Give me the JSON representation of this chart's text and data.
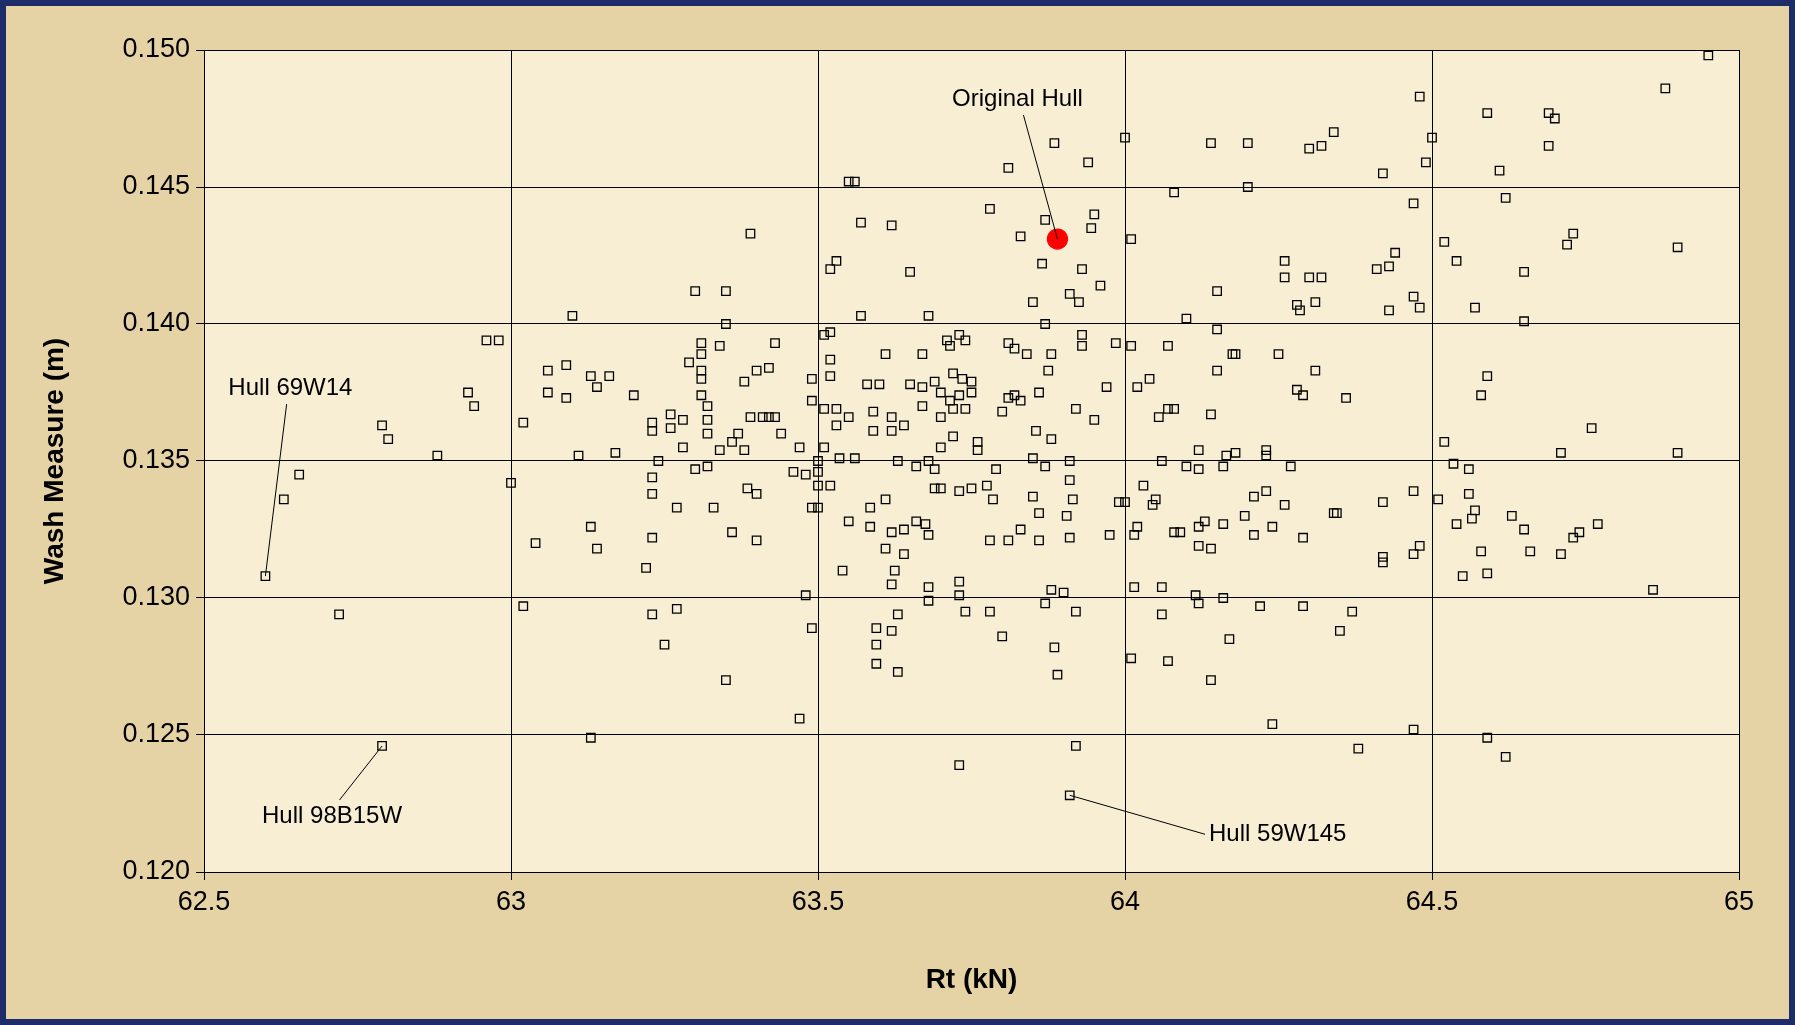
{
  "chart_data": {
    "type": "scatter",
    "xlabel": "Rt (kN)",
    "ylabel": "Wash Measure (m)",
    "xlim": [
      62.5,
      65
    ],
    "xticks": [
      62.5,
      63,
      63.5,
      64,
      64.5,
      65
    ],
    "ylim": [
      0.12,
      0.15
    ],
    "yticks": [
      {
        "value": 0.12,
        "label": "0.120"
      },
      0.125,
      {
        "value": 0.13,
        "label": "0.130"
      },
      0.135,
      {
        "value": 0.14,
        "label": "0.140"
      },
      0.145,
      {
        "value": 0.15,
        "label": "0.150"
      }
    ],
    "grid": true,
    "legend": false,
    "series": [
      {
        "color": "#000000",
        "marker": "square",
        "x": [
          62.6,
          62.63,
          62.655,
          62.72,
          62.79,
          62.8,
          62.79,
          62.88,
          62.93,
          62.94,
          62.96,
          62.98,
          63,
          63.02,
          63.02,
          63.04,
          63.06,
          63.06,
          63.09,
          63.09,
          63.1,
          63.11,
          63.13,
          63.14,
          63.13,
          63.14,
          63.13,
          63.16,
          63.17,
          63.2,
          63.22,
          63.23,
          63.23,
          63.23,
          63.23,
          63.23,
          63.23,
          63.24,
          63.25,
          63.26,
          63.26,
          63.27,
          63.27,
          63.28,
          63.28,
          63.29,
          63.3,
          63.3,
          63.31,
          63.31,
          63.31,
          63.31,
          63.31,
          63.32,
          63.32,
          63.32,
          63.32,
          63.33,
          63.34,
          63.34,
          63.35,
          63.35,
          63.35,
          63.36,
          63.36,
          63.37,
          63.38,
          63.38,
          63.385,
          63.39,
          63.39,
          63.4,
          63.4,
          63.4,
          63.41,
          63.42,
          63.43,
          63.42,
          63.43,
          63.44,
          63.46,
          63.47,
          63.47,
          63.48,
          63.49,
          63.48,
          63.49,
          63.49,
          63.49,
          63.5,
          63.5,
          63.5,
          63.5,
          63.51,
          63.51,
          63.51,
          63.52,
          63.52,
          63.52,
          63.52,
          63.53,
          63.52,
          63.53,
          63.53,
          63.535,
          63.54,
          63.55,
          63.56,
          63.55,
          63.55,
          63.56,
          63.57,
          63.57,
          63.58,
          63.585,
          63.585,
          63.59,
          63.59,
          63.595,
          63.595,
          63.595,
          63.6,
          63.61,
          63.61,
          63.61,
          63.62,
          63.62,
          63.62,
          63.62,
          63.62,
          63.625,
          63.62,
          63.63,
          63.63,
          63.63,
          63.64,
          63.64,
          63.64,
          63.65,
          63.65,
          63.66,
          63.66,
          63.67,
          63.67,
          63.67,
          63.675,
          63.68,
          63.68,
          63.68,
          63.68,
          63.68,
          63.69,
          63.69,
          63.69,
          63.7,
          63.7,
          63.7,
          63.7,
          63.71,
          63.715,
          63.73,
          63.715,
          63.72,
          63.72,
          63.72,
          63.73,
          63.73,
          63.73,
          63.73,
          63.73,
          63.735,
          63.74,
          63.74,
          63.74,
          63.75,
          63.75,
          63.75,
          63.76,
          63.76,
          63.775,
          63.78,
          63.78,
          63.78,
          63.785,
          63.79,
          63.8,
          63.8,
          63.81,
          63.81,
          63.81,
          63.82,
          63.82,
          63.81,
          63.83,
          63.83,
          63.83,
          63.84,
          63.85,
          63.85,
          63.85,
          63.855,
          63.86,
          63.86,
          63.86,
          63.87,
          63.865,
          63.87,
          63.87,
          63.87,
          63.875,
          63.88,
          63.88,
          63.88,
          63.885,
          63.885,
          63.89,
          63.9,
          63.905,
          63.91,
          63.91,
          63.91,
          63.91,
          63.91,
          63.915,
          63.92,
          63.92,
          63.92,
          63.925,
          63.93,
          63.93,
          63.93,
          63.94,
          63.945,
          63.95,
          63.95,
          63.96,
          63.97,
          63.975,
          63.985,
          63.99,
          64,
          64,
          64.01,
          64.01,
          64.01,
          64.015,
          64.015,
          64.02,
          64.02,
          64.03,
          64.04,
          64.045,
          64.05,
          64.055,
          64.06,
          64.06,
          64.06,
          64.07,
          64.07,
          64.07,
          64.08,
          64.08,
          64.08,
          64.09,
          64.1,
          64.1,
          64.115,
          64.12,
          64.12,
          64.12,
          64.12,
          64.12,
          64.13,
          64.14,
          64.14,
          64.14,
          64.14,
          64.15,
          64.15,
          64.15,
          64.16,
          64.16,
          64.16,
          64.165,
          64.17,
          64.175,
          64.18,
          64.18,
          64.195,
          64.2,
          64.2,
          64.21,
          64.21,
          64.22,
          64.23,
          64.23,
          64.23,
          64.24,
          64.24,
          64.25,
          64.26,
          64.26,
          64.26,
          64.27,
          64.28,
          64.28,
          64.285,
          64.29,
          64.29,
          64.29,
          64.3,
          64.3,
          64.31,
          64.31,
          64.32,
          64.32,
          64.34,
          64.34,
          64.345,
          64.35,
          64.36,
          64.37,
          64.38,
          64.41,
          64.42,
          64.42,
          64.42,
          64.42,
          64.43,
          64.43,
          64.44,
          64.47,
          64.47,
          64.47,
          64.47,
          64.47,
          64.48,
          64.48,
          64.48,
          64.49,
          64.5,
          64.51,
          64.52,
          64.52,
          64.535,
          64.54,
          64.54,
          64.55,
          64.56,
          64.56,
          64.565,
          64.57,
          64.57,
          64.58,
          64.58,
          64.59,
          64.59,
          64.59,
          64.59,
          64.61,
          64.62,
          64.62,
          64.63,
          64.65,
          64.65,
          64.65,
          64.66,
          64.69,
          64.69,
          64.7,
          64.71,
          64.71,
          64.73,
          64.72,
          64.73,
          64.74,
          64.76,
          64.77,
          64.86,
          64.88,
          64.9,
          64.9,
          64.95
        ],
        "values": [
          0.1308,
          0.1336,
          0.1345,
          0.1294,
          0.1363,
          0.1358,
          0.1246,
          0.1352,
          0.1375,
          0.137,
          0.1394,
          0.1394,
          0.1342,
          0.1364,
          0.1297,
          0.132,
          0.1383,
          0.1375,
          0.1385,
          0.1373,
          0.1403,
          0.1352,
          0.1326,
          0.1318,
          0.1381,
          0.1377,
          0.1249,
          0.1381,
          0.1353,
          0.1374,
          0.1311,
          0.1322,
          0.1344,
          0.1364,
          0.1361,
          0.1294,
          0.1338,
          0.135,
          0.1283,
          0.1367,
          0.1362,
          0.1296,
          0.1333,
          0.1365,
          0.1355,
          0.1386,
          0.1347,
          0.1412,
          0.1393,
          0.1389,
          0.1383,
          0.138,
          0.1374,
          0.137,
          0.1365,
          0.136,
          0.1348,
          0.1333,
          0.1392,
          0.1354,
          0.127,
          0.1412,
          0.14,
          0.1324,
          0.1357,
          0.136,
          0.1379,
          0.1354,
          0.134,
          0.1433,
          0.1366,
          0.1321,
          0.1338,
          0.1383,
          0.1366,
          0.1366,
          0.1366,
          0.1384,
          0.1393,
          0.136,
          0.1346,
          0.1355,
          0.1256,
          0.1345,
          0.1333,
          0.1301,
          0.1289,
          0.138,
          0.1372,
          0.1333,
          0.1346,
          0.135,
          0.1341,
          0.1396,
          0.1355,
          0.1369,
          0.1397,
          0.1381,
          0.1387,
          0.1341,
          0.1423,
          0.142,
          0.1369,
          0.1363,
          0.1351,
          0.131,
          0.1452,
          0.1452,
          0.1366,
          0.1328,
          0.1351,
          0.1403,
          0.1437,
          0.1378,
          0.1333,
          0.1326,
          0.1368,
          0.1361,
          0.1289,
          0.1283,
          0.1276,
          0.1378,
          0.1336,
          0.1389,
          0.1318,
          0.1305,
          0.1366,
          0.1361,
          0.1436,
          0.1324,
          0.131,
          0.1288,
          0.1273,
          0.1294,
          0.135,
          0.1316,
          0.1325,
          0.1363,
          0.1419,
          0.1378,
          0.1328,
          0.1348,
          0.1377,
          0.137,
          0.1389,
          0.1327,
          0.1403,
          0.1304,
          0.1299,
          0.1323,
          0.135,
          0.1347,
          0.134,
          0.1379,
          0.1355,
          0.134,
          0.1375,
          0.1366,
          0.1394,
          0.1392,
          0.1396,
          0.1372,
          0.1369,
          0.1359,
          0.1382,
          0.1374,
          0.1306,
          0.1301,
          0.1339,
          0.1239,
          0.138,
          0.1394,
          0.1295,
          0.1369,
          0.1375,
          0.1379,
          0.134,
          0.1357,
          0.1354,
          0.1341,
          0.1442,
          0.1295,
          0.1321,
          0.1336,
          0.1347,
          0.1368,
          0.1286,
          0.1373,
          0.1457,
          0.1393,
          0.1391,
          0.1374,
          0.1321,
          0.1432,
          0.1325,
          0.1372,
          0.1389,
          0.1351,
          0.1337,
          0.1408,
          0.1361,
          0.1331,
          0.1321,
          0.1375,
          0.1298,
          0.1422,
          0.1348,
          0.1438,
          0.14,
          0.1383,
          0.1389,
          0.1303,
          0.1358,
          0.1282,
          0.1466,
          0.1272,
          0.1302,
          0.133,
          0.1411,
          0.135,
          0.1343,
          0.1228,
          0.1322,
          0.1336,
          0.1369,
          0.1246,
          0.1295,
          0.1408,
          0.1396,
          0.1392,
          0.142,
          0.1459,
          0.1435,
          0.144,
          0.1365,
          0.1414,
          0.1377,
          0.1323,
          0.1393,
          0.1335,
          0.1468,
          0.1335,
          0.1431,
          0.1392,
          0.1278,
          0.1304,
          0.1323,
          0.1326,
          0.1377,
          0.1341,
          0.138,
          0.1334,
          0.1336,
          0.1366,
          0.1294,
          0.1304,
          0.135,
          0.1369,
          0.1392,
          0.1277,
          0.1448,
          0.1324,
          0.1369,
          0.1324,
          0.1348,
          0.1402,
          0.1301,
          0.1326,
          0.1354,
          0.1347,
          0.1319,
          0.1298,
          0.1328,
          0.127,
          0.1466,
          0.1318,
          0.1367,
          0.1412,
          0.1398,
          0.1383,
          0.1327,
          0.1348,
          0.13,
          0.1352,
          0.1285,
          0.1389,
          0.1389,
          0.1353,
          0.133,
          0.145,
          0.1466,
          0.1337,
          0.1323,
          0.1297,
          0.1339,
          0.1354,
          0.1352,
          0.1326,
          0.1254,
          0.1389,
          0.1334,
          0.1417,
          0.1423,
          0.1348,
          0.1407,
          0.1376,
          0.1405,
          0.1374,
          0.1322,
          0.1297,
          0.1464,
          0.1417,
          0.1408,
          0.1383,
          0.1417,
          0.1465,
          0.147,
          0.1331,
          0.1331,
          0.1288,
          0.1373,
          0.1295,
          0.1245,
          0.142,
          0.1315,
          0.1313,
          0.1335,
          0.1455,
          0.1421,
          0.1405,
          0.1426,
          0.1444,
          0.141,
          0.1339,
          0.1316,
          0.1252,
          0.1483,
          0.1319,
          0.1406,
          0.1459,
          0.1468,
          0.1336,
          0.1357,
          0.143,
          0.1349,
          0.1423,
          0.1327,
          0.1308,
          0.1347,
          0.1338,
          0.1329,
          0.1332,
          0.1406,
          0.1317,
          0.1374,
          0.1249,
          0.1477,
          0.1381,
          0.1309,
          0.1456,
          0.1242,
          0.1446,
          0.133,
          0.1419,
          0.1401,
          0.1325,
          0.1317,
          0.1477,
          0.1465,
          0.1475,
          0.1353,
          0.1316,
          0.1433,
          0.1429,
          0.1322,
          0.1324,
          0.1362,
          0.1327,
          0.1303,
          0.1486,
          0.1428,
          0.1353,
          0.1498
        ]
      },
      {
        "color": "#ff0000",
        "marker": "circle",
        "x": [
          63.89
        ],
        "values": [
          0.1431
        ]
      }
    ],
    "annotations": [
      {
        "text": "Original Hull",
        "x": 63.89,
        "y": 0.1431
      },
      {
        "text": "Hull 69W14",
        "x": 62.6,
        "y": 0.1308
      },
      {
        "text": "Hull 98B15W",
        "x": 62.79,
        "y": 0.1246
      },
      {
        "text": "Hull 59W145",
        "x": 63.91,
        "y": 0.1228
      }
    ]
  }
}
